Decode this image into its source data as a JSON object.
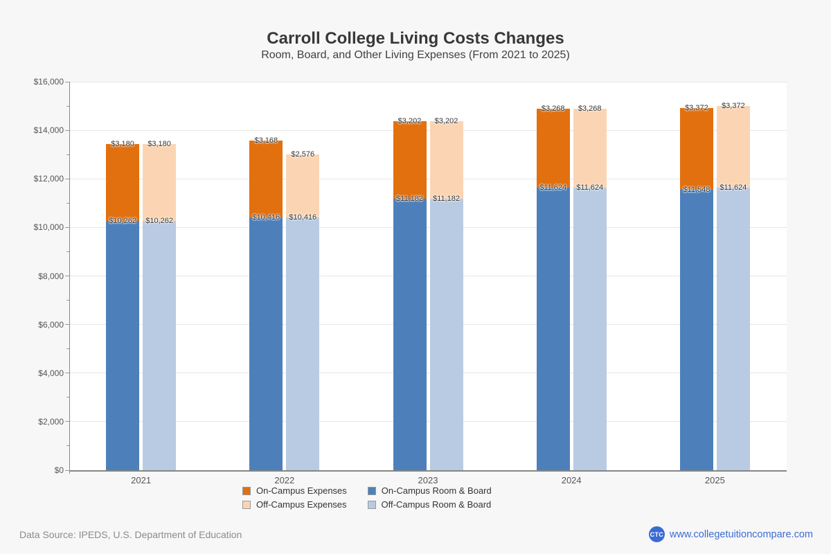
{
  "title": "Carroll College Living Costs Changes",
  "subtitle": "Room, Board, and Other Living Expenses (From 2021 to 2025)",
  "footer": {
    "data_source": "Data Source: IPEDS, U.S. Department of Education",
    "logo_text": "CTC",
    "site_label": "www.collegetuitioncompare.com"
  },
  "chart_data": {
    "type": "bar",
    "stacked": true,
    "categories": [
      "2021",
      "2022",
      "2023",
      "2024",
      "2025"
    ],
    "series": [
      {
        "name": "On-Campus Room & Board",
        "stack": "on-campus",
        "color": "#4d80bb",
        "values": [
          10262,
          10416,
          11182,
          11624,
          11548
        ]
      },
      {
        "name": "On-Campus Expenses",
        "stack": "on-campus",
        "color": "#e2700f",
        "values": [
          3180,
          3168,
          3202,
          3268,
          3372
        ]
      },
      {
        "name": "Off-Campus Room & Board",
        "stack": "off-campus",
        "color": "#b9cbe2",
        "values": [
          10262,
          10416,
          11182,
          11624,
          11624
        ]
      },
      {
        "name": "Off-Campus Expenses",
        "stack": "off-campus",
        "color": "#fbd5b3",
        "values": [
          3180,
          2576,
          3202,
          3268,
          3372
        ]
      }
    ],
    "stack_order": [
      "on-campus",
      "off-campus"
    ],
    "legend_order": [
      "On-Campus Expenses",
      "On-Campus Room & Board",
      "Off-Campus Expenses",
      "Off-Campus Room & Board"
    ],
    "title": "Carroll College Living Costs Changes",
    "xlabel": "",
    "ylabel": "",
    "ylim": [
      0,
      16000
    ],
    "y_tick_interval": 2000,
    "y_minor_tick_interval": 1000,
    "y_tick_labels": [
      "$0",
      "$2,000",
      "$4,000",
      "$6,000",
      "$8,000",
      "$10,000",
      "$12,000",
      "$14,000",
      "$16,000"
    ],
    "grid": "horizontal",
    "legend_position": "bottom",
    "value_label_prefix": "$"
  }
}
